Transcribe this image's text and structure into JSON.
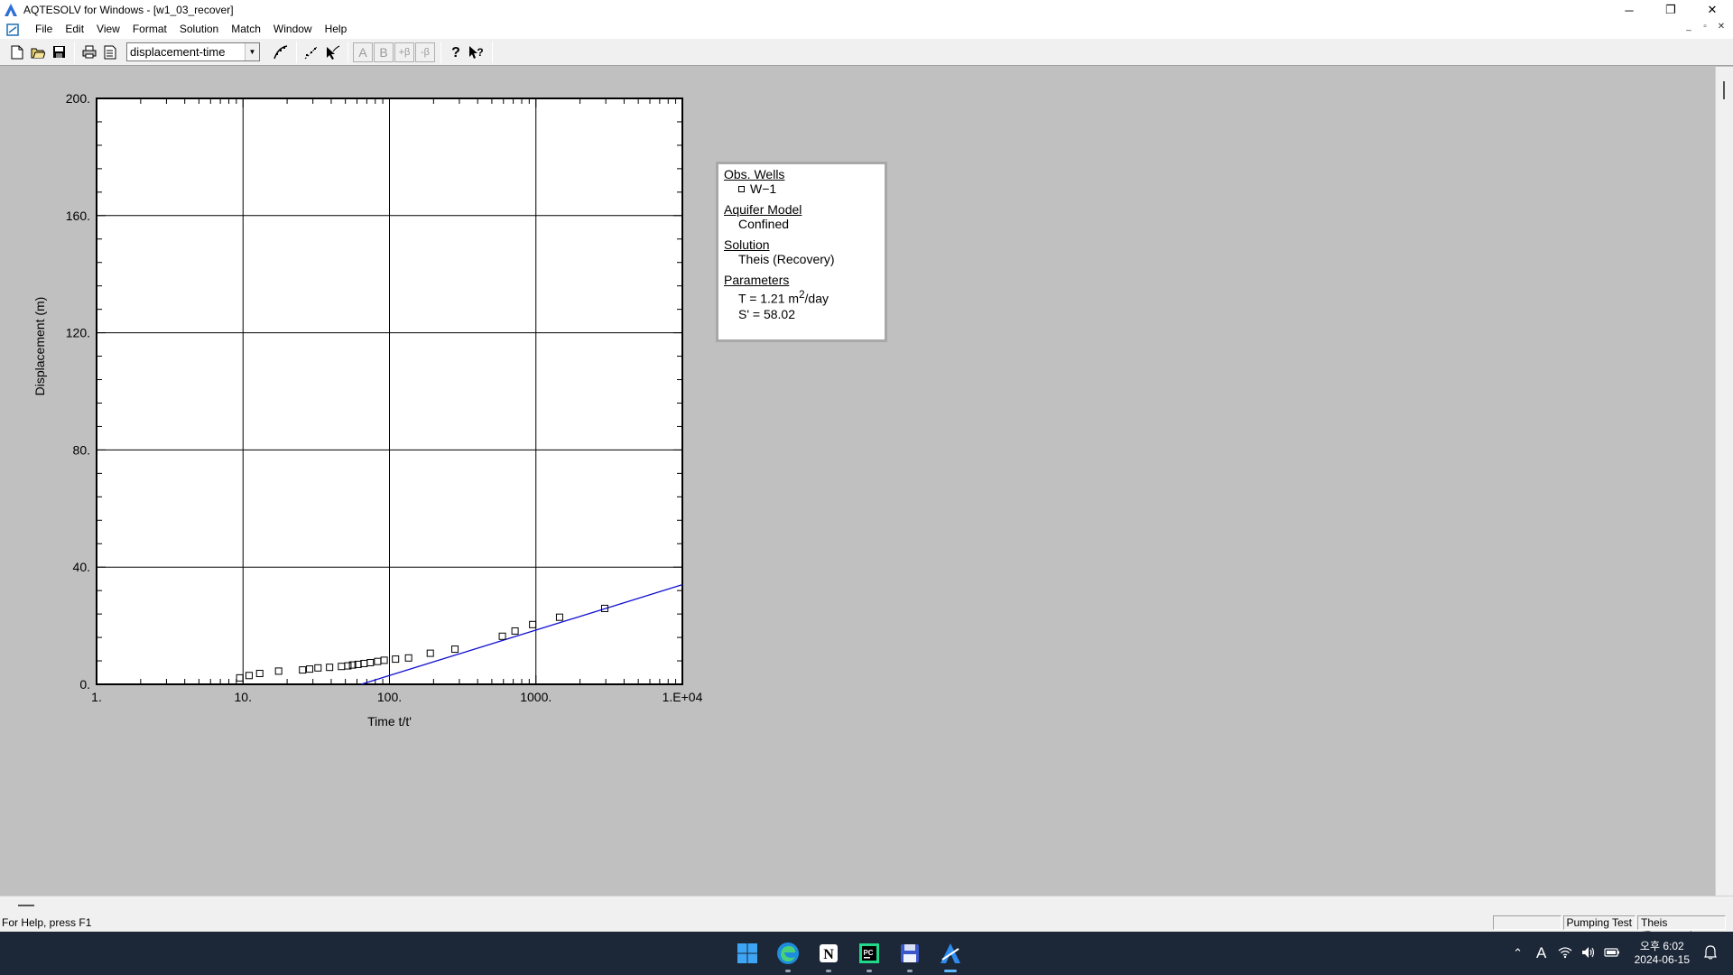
{
  "window": {
    "title": "AQTESOLV for Windows - [w1_03_recover]",
    "controls": [
      "─",
      "❐",
      "✕"
    ]
  },
  "menu": {
    "items": [
      "File",
      "Edit",
      "View",
      "Format",
      "Solution",
      "Match",
      "Window",
      "Help"
    ],
    "mdi_controls": [
      "_",
      "▫",
      "✕"
    ]
  },
  "toolbar": {
    "plot_type_select": "displacement-time",
    "disabled_letters": [
      "A",
      "B",
      "+β",
      "-β"
    ]
  },
  "chart_data": {
    "type": "scatter",
    "xlabel": "Time t/t'",
    "ylabel": "Displacement (m)",
    "xscale": "log",
    "xlim": [
      1,
      10000
    ],
    "ylim": [
      0,
      200
    ],
    "x_tick_labels": [
      "1.",
      "10.",
      "100.",
      "1000.",
      "1.E+04"
    ],
    "x_tick_values": [
      1,
      10,
      100,
      1000,
      10000
    ],
    "y_tick_labels": [
      "0.",
      "40.",
      "80.",
      "120.",
      "160.",
      "200."
    ],
    "y_tick_values": [
      0,
      40,
      80,
      120,
      160,
      200
    ],
    "grid": true,
    "series": [
      {
        "name": "W-1",
        "marker": "square",
        "x": [
          9.5,
          11,
          13,
          17.5,
          25.5,
          28.5,
          32.5,
          39,
          47,
          52,
          56,
          61,
          67,
          74,
          83,
          92,
          110,
          135,
          190,
          280,
          590,
          720,
          950,
          1450,
          2950
        ],
        "y": [
          2.2,
          3.0,
          3.7,
          4.5,
          4.9,
          5.2,
          5.6,
          5.8,
          6.1,
          6.3,
          6.6,
          6.8,
          7.1,
          7.4,
          7.8,
          8.2,
          8.6,
          9.0,
          10.6,
          12.0,
          16.4,
          18.2,
          20.4,
          22.9,
          25.9
        ]
      }
    ],
    "fit_line": {
      "color": "#1010d0",
      "x": [
        64,
        10000
      ],
      "y": [
        0,
        34
      ]
    }
  },
  "legend": {
    "obs_wells_header": "Obs. Wells",
    "obs_well": "W−1",
    "aquifer_header": "Aquifer Model",
    "aquifer": "Confined",
    "solution_header": "Solution",
    "solution": "Theis (Recovery)",
    "parameters_header": "Parameters",
    "param_T_prefix": "T   = 1.21 m",
    "param_T_sup": "2",
    "param_T_suffix": "/day",
    "param_S": "S'  = 58.02"
  },
  "status": {
    "help_text": "For Help, press F1",
    "pane_empty": "",
    "pane_test": "Pumping Test",
    "pane_solution": "Theis (Recovery)"
  },
  "taskbar": {
    "time": "오후 6:02",
    "date": "2024-06-15",
    "ime": "A"
  }
}
